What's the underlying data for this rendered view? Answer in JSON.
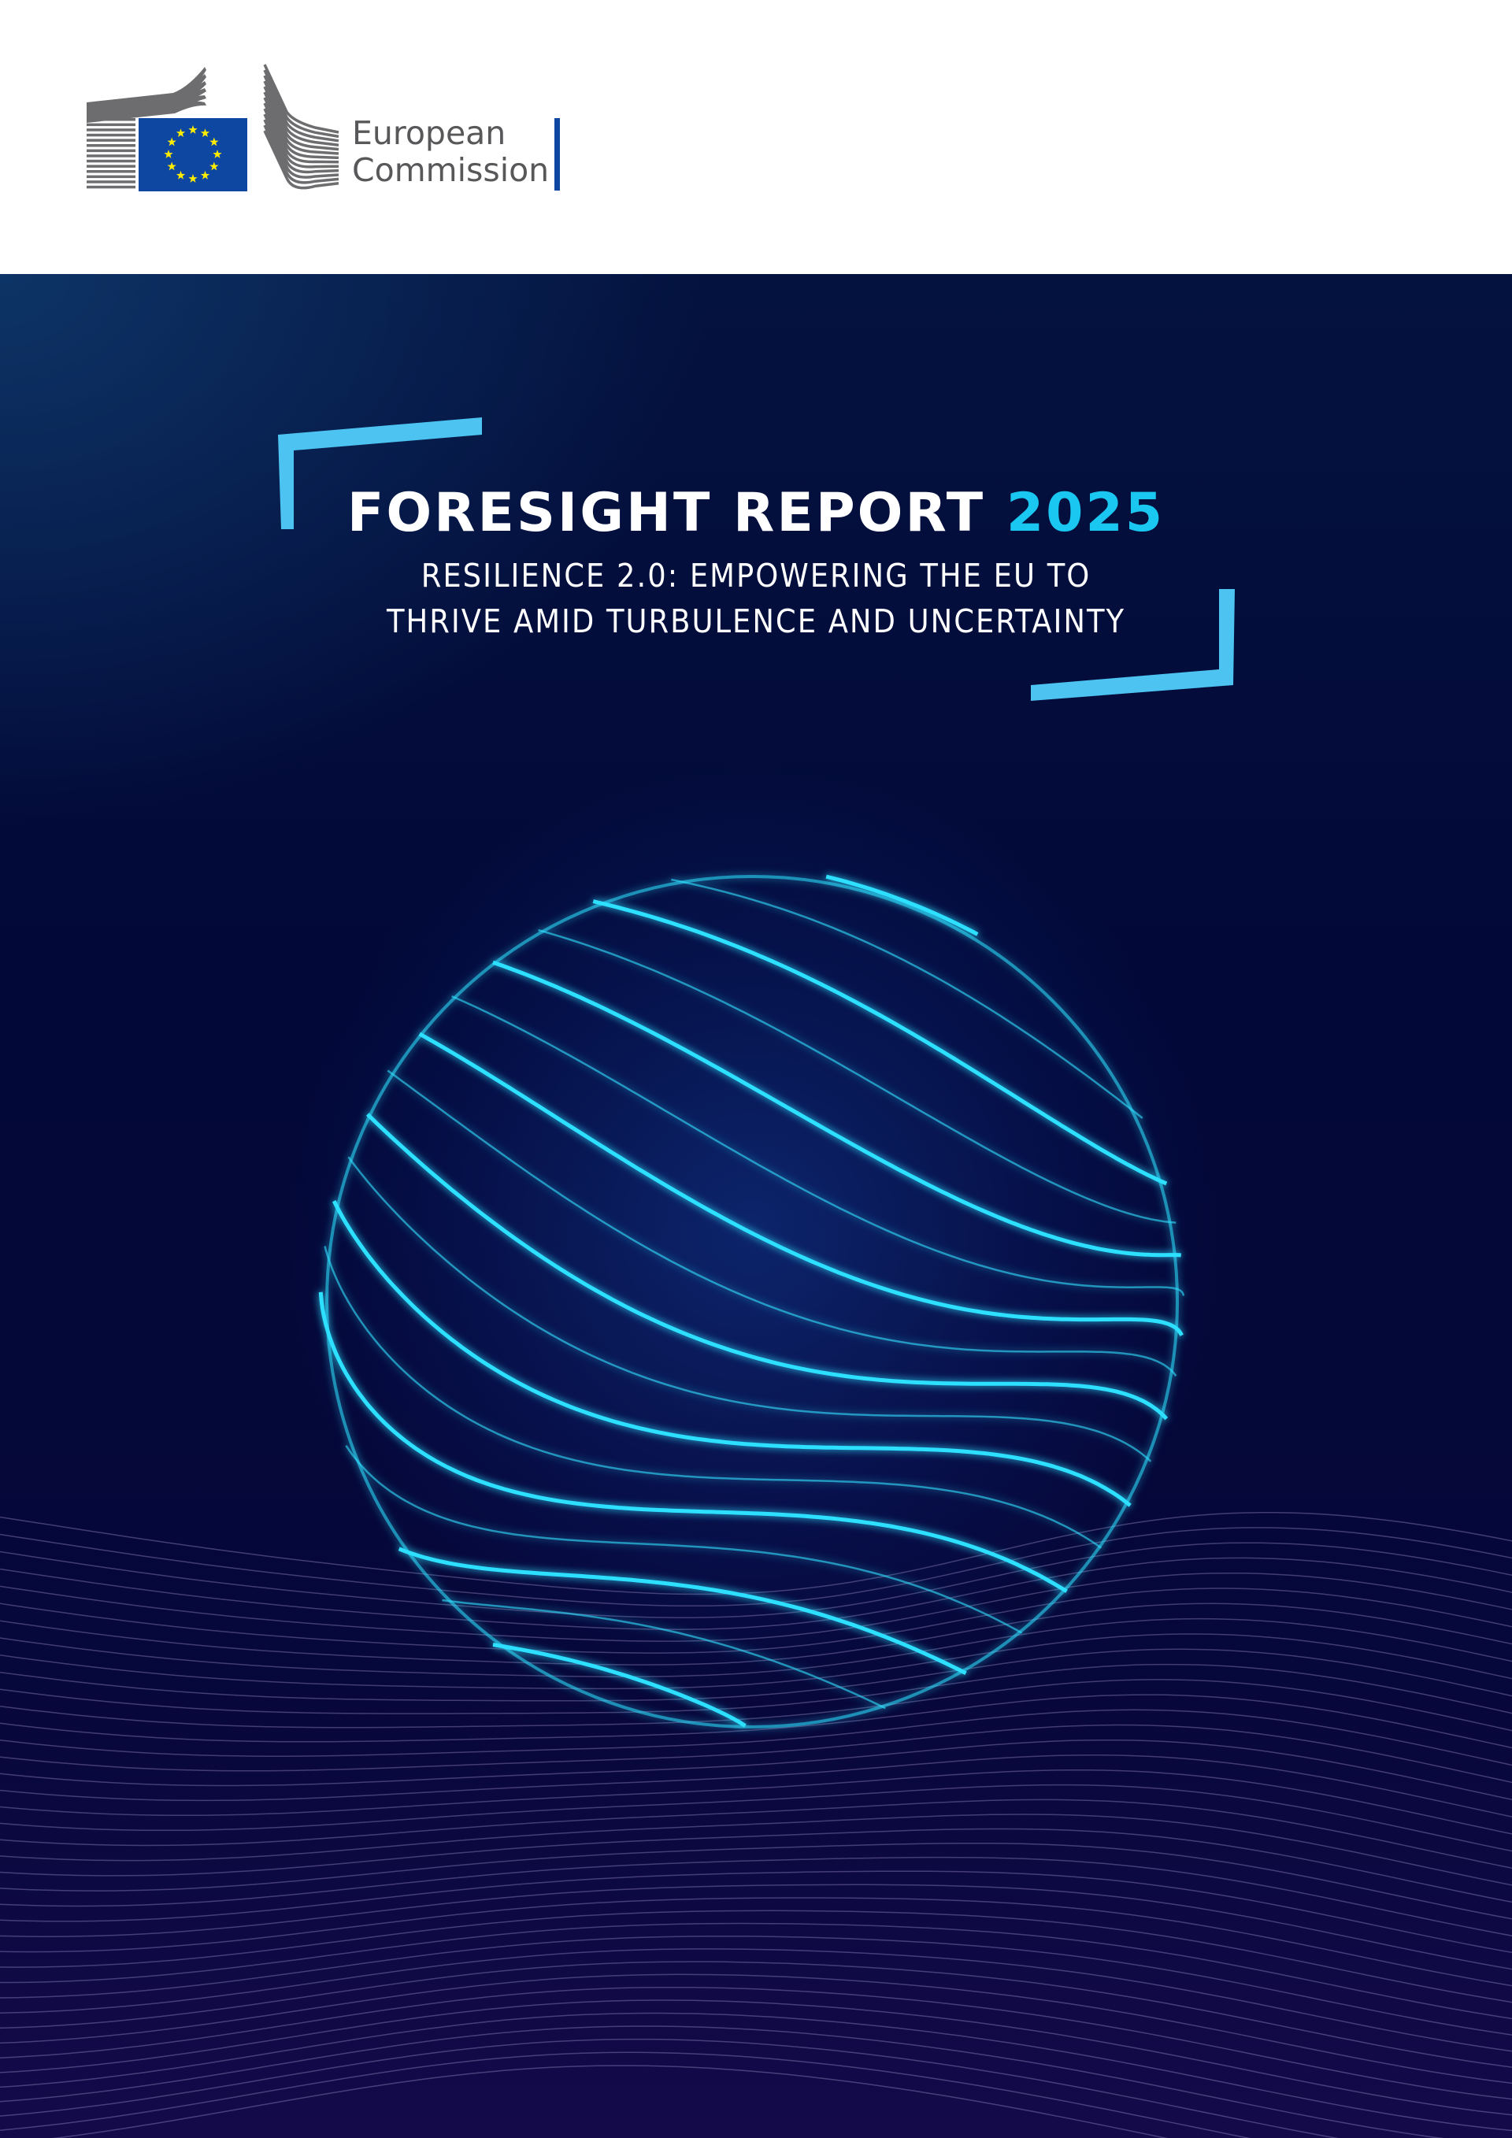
{
  "header": {
    "logo": {
      "name": "European Commission",
      "line1": "European",
      "line2": "Commission"
    },
    "colors": {
      "eu_blue": "#0e47a1",
      "star_yellow": "#ffed00",
      "logo_grey": "#58585a"
    }
  },
  "cover": {
    "title_main": "FORESIGHT REPORT",
    "title_year": "2025",
    "subtitle_line1": "RESILIENCE 2.0: EMPOWERING THE EU TO",
    "subtitle_line2": "THRIVE AMID TURBULENCE AND UNCERTAINTY",
    "colors": {
      "accent_cyan": "#19c7f0",
      "bracket": "#4cc3f0",
      "background": "#04123f",
      "globe_line": "#2ee0ff"
    },
    "illustration": "glowing-wireframe-globe-over-waves"
  }
}
